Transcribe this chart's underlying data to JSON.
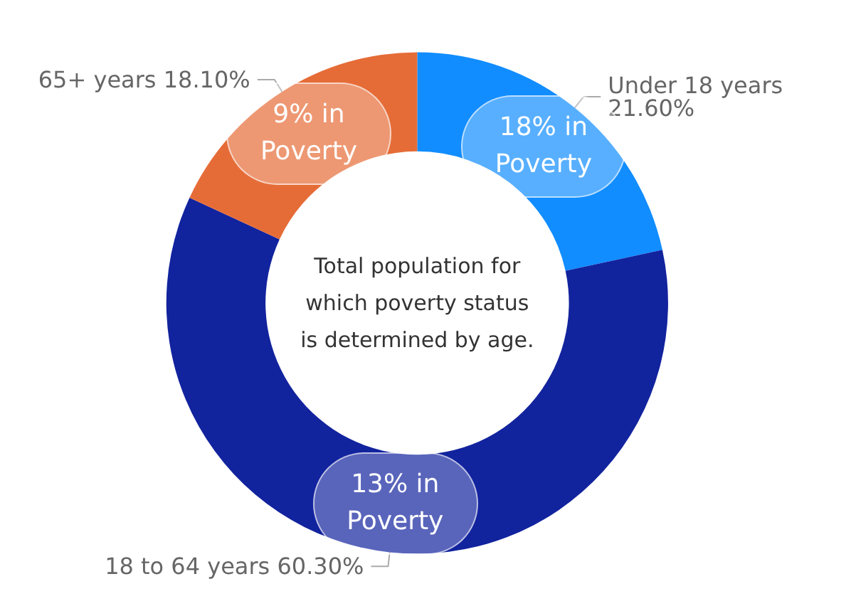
{
  "chart_data": {
    "type": "donut",
    "categories": [
      "Under 18 years",
      "18 to 64 years",
      "65+ years"
    ],
    "values": [
      21.6,
      60.3,
      18.1
    ],
    "colors": [
      "#118dff",
      "#12239e",
      "#e66c37"
    ],
    "value_labels": [
      "21.60%",
      "60.30%",
      "18.10%"
    ],
    "annotations": [
      "Total population for which poverty status is determined by age.",
      "18% in Poverty",
      "13% in Poverty",
      "9% in Poverty"
    ],
    "legend": false
  }
}
